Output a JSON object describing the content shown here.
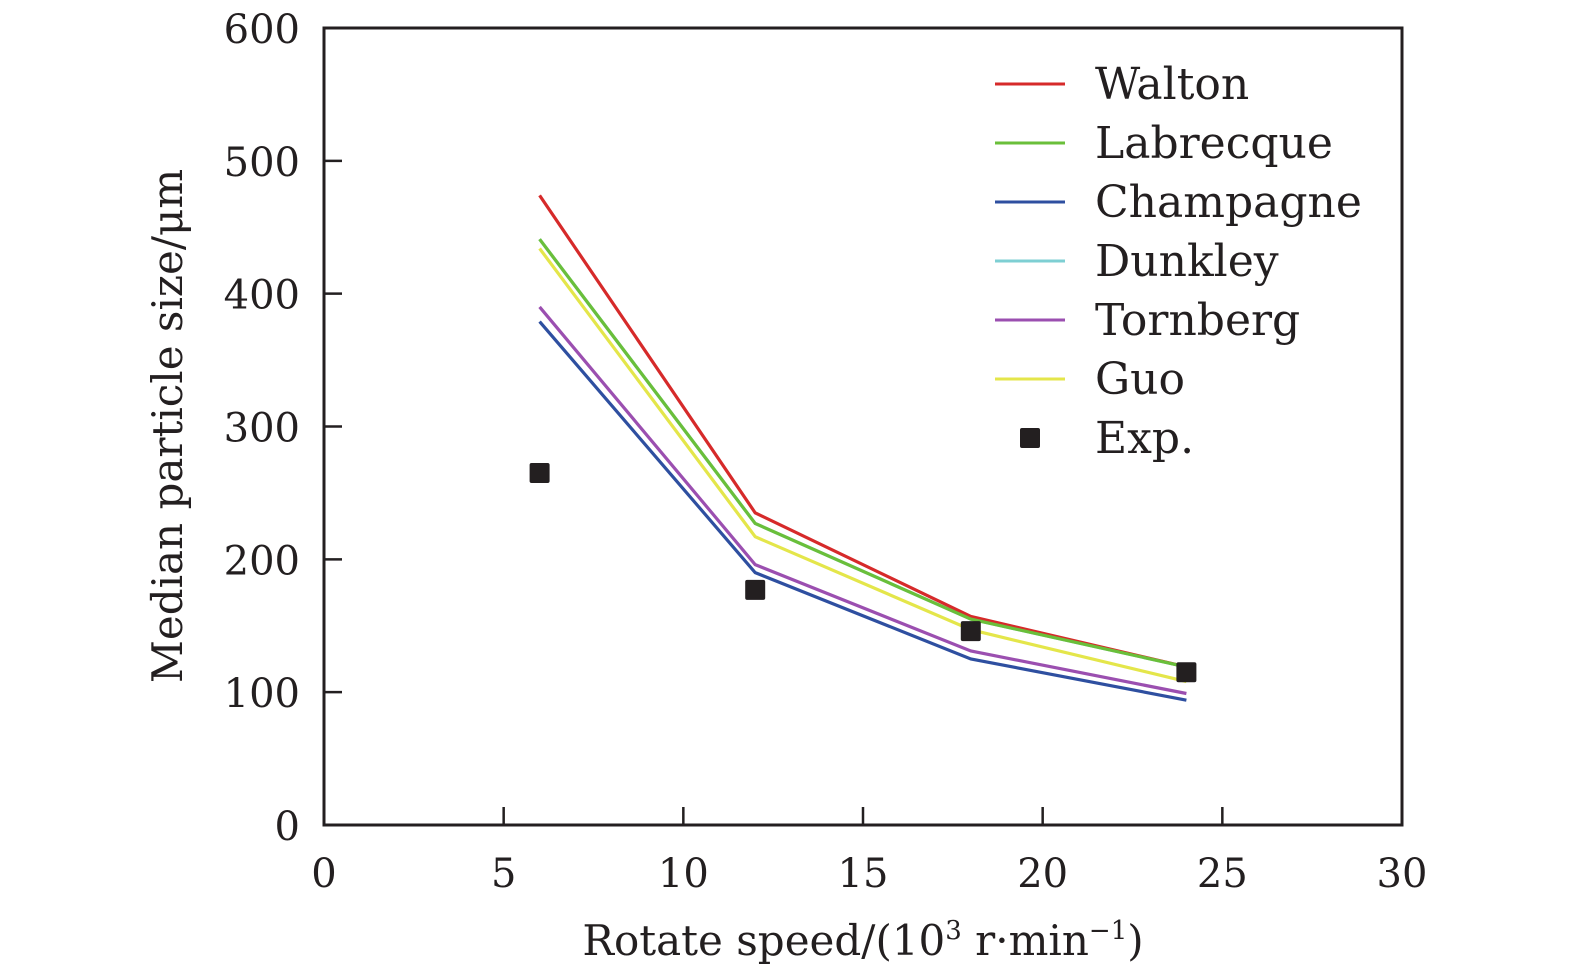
{
  "chart_data": {
    "type": "line",
    "title": "",
    "xlabel": "Rotate speed/(10³ r·min⁻¹)",
    "xlabel_parts": {
      "main": "Rotate speed/(10",
      "sup1": "3",
      "mid": " r·min",
      "sup2": "−1",
      "end": ")"
    },
    "ylabel": "Median particle size/μm",
    "xlim": [
      0,
      30
    ],
    "ylim": [
      0,
      600
    ],
    "xticks": [
      0,
      5,
      10,
      15,
      20,
      25,
      30
    ],
    "yticks": [
      0,
      100,
      200,
      300,
      400,
      500,
      600
    ],
    "xtick_labels": [
      "0",
      "5",
      "10",
      "15",
      "20",
      "25",
      "30"
    ],
    "ytick_labels": [
      "0",
      "100",
      "200",
      "300",
      "400",
      "500",
      "600"
    ],
    "grid": false,
    "legend_position": "top-right",
    "x": [
      6,
      12,
      18,
      24
    ],
    "series": [
      {
        "name": "Walton",
        "kind": "line",
        "color": "#d62a2a",
        "values": [
          474,
          235,
          157,
          119
        ]
      },
      {
        "name": "Labrecque",
        "kind": "line",
        "color": "#6abf3a",
        "values": [
          441,
          227,
          155,
          119
        ]
      },
      {
        "name": "Champagne",
        "kind": "line",
        "color": "#2e4fa0",
        "values": [
          379,
          190,
          125,
          94
        ]
      },
      {
        "name": "Dunkley",
        "kind": "line",
        "color": "#7ecfd3",
        "values": [
          441,
          227,
          155,
          119
        ]
      },
      {
        "name": "Tornberg",
        "kind": "line",
        "color": "#9b4fb0",
        "values": [
          390,
          196,
          131,
          99
        ]
      },
      {
        "name": "Guo",
        "kind": "line",
        "color": "#e4e64a",
        "values": [
          434,
          217,
          147,
          108
        ]
      },
      {
        "name": "Exp.",
        "kind": "marker",
        "color": "#231f20",
        "values": [
          265,
          177,
          146,
          115
        ]
      }
    ]
  }
}
